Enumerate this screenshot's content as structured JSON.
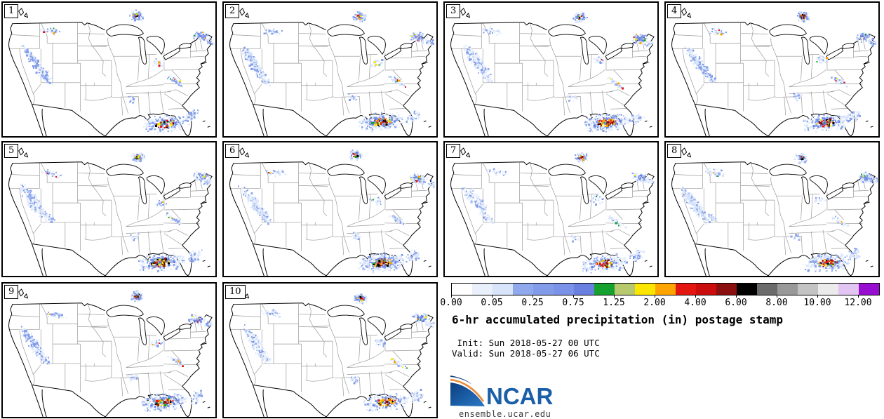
{
  "figure": {
    "title": "6-hr accumulated precipitation (in) postage stamp",
    "init_line": " Init: Sun 2018-05-27 00 UTC",
    "valid_line": "Valid: Sun 2018-05-27 06 UTC",
    "logo_text": "NCAR",
    "source_url": "ensemble.ucar.edu"
  },
  "panels": [
    {
      "member": "1"
    },
    {
      "member": "2"
    },
    {
      "member": "3"
    },
    {
      "member": "4"
    },
    {
      "member": "5"
    },
    {
      "member": "6"
    },
    {
      "member": "7"
    },
    {
      "member": "8"
    },
    {
      "member": "9"
    },
    {
      "member": "10"
    }
  ],
  "colorbar": {
    "tick_labels": [
      "0.00",
      "0.05",
      "0.25",
      "0.75",
      "1.25",
      "2.00",
      "4.00",
      "6.00",
      "8.00",
      "10.00",
      "12.00"
    ],
    "segment_colors": [
      "#ffffff",
      "#e9f0fc",
      "#d7e4fa",
      "#8fa9ec",
      "#839ce9",
      "#7a92e7",
      "#6a80e1",
      "#15a12d",
      "#b6c96f",
      "#fbe600",
      "#fda400",
      "#e41610",
      "#cb0d0d",
      "#8b0f0e",
      "#000000",
      "#6b6b6b",
      "#999999",
      "#c3c3c3",
      "#ebebeb",
      "#e3c5f3",
      "#970ed1"
    ]
  },
  "map_style": {
    "coastline_color": "#000000",
    "state_border_color": "#9a9a9a",
    "water_fill": "#ffffff",
    "logo_blue": "#1b5fa8",
    "logo_orange": "#e98b3a"
  }
}
